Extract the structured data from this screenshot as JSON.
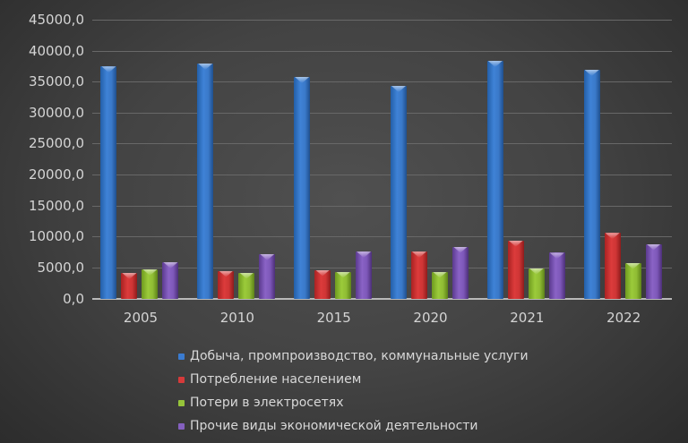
{
  "chart_data": {
    "type": "bar",
    "title": "",
    "xlabel": "",
    "ylabel": "",
    "categories": [
      "2005",
      "2010",
      "2015",
      "2020",
      "2021",
      "2022"
    ],
    "ylim": [
      0,
      45000
    ],
    "yticks": [
      "0,0",
      "5000,0",
      "10000,0",
      "15000,0",
      "20000,0",
      "25000,0",
      "30000,0",
      "35000,0",
      "40000,0",
      "45000,0"
    ],
    "grid": true,
    "legend_position": "bottom",
    "series": [
      {
        "name": "Добыча, промпроизводство, коммунальные услуги",
        "color": "#3a7bd0",
        "values": [
          37460,
          37920,
          35760,
          34310,
          38360,
          36910
        ]
      },
      {
        "name": "Потребление населением",
        "color": "#d63a3a",
        "values": [
          4120,
          4480,
          4620,
          7570,
          9350,
          10590
        ]
      },
      {
        "name": "Потери в электросетях",
        "color": "#96c43a",
        "values": [
          4700,
          4190,
          4330,
          4330,
          4870,
          5740
        ]
      },
      {
        "name": "Прочие виды экономической деятельности",
        "color": "#8460bf",
        "values": [
          5850,
          7180,
          7570,
          8380,
          7370,
          8810
        ]
      }
    ]
  }
}
